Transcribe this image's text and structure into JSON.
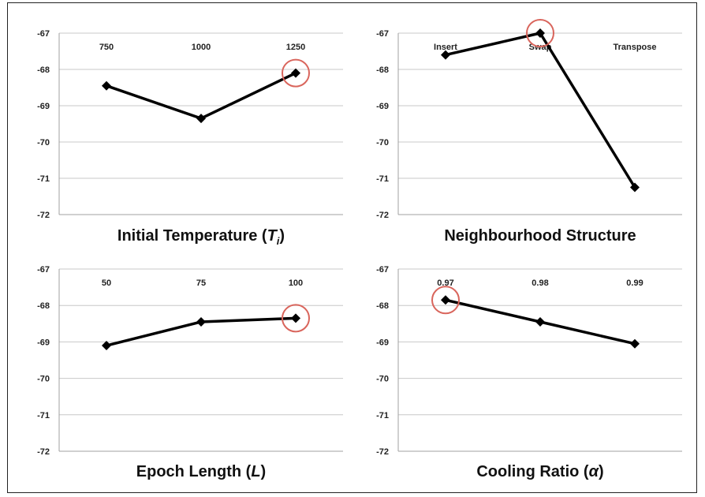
{
  "chart_data": [
    {
      "type": "line",
      "title": "Initial Temperature (",
      "title_var": "T",
      "title_sub": "i",
      "title_end": ")",
      "categories": [
        "750",
        "1000",
        "1250"
      ],
      "values": [
        -68.45,
        -69.35,
        -68.1
      ],
      "ylim": [
        -72,
        -67
      ],
      "yticks": [
        "-67",
        "-68",
        "-69",
        "-70",
        "-71",
        "-72"
      ],
      "highlight_index": 2,
      "grid": true,
      "legend": "none"
    },
    {
      "type": "line",
      "title": "Neighbourhood Structure",
      "title_var": "",
      "title_sub": "",
      "title_end": "",
      "categories": [
        "Insert",
        "Swap",
        "Transpose"
      ],
      "values": [
        -67.6,
        -67.0,
        -71.25
      ],
      "ylim": [
        -72,
        -67
      ],
      "yticks": [
        "-67",
        "-68",
        "-69",
        "-70",
        "-71",
        "-72"
      ],
      "highlight_index": 1,
      "grid": true,
      "legend": "none"
    },
    {
      "type": "line",
      "title": "Epoch Length (",
      "title_var": "L",
      "title_sub": "",
      "title_end": ")",
      "categories": [
        "50",
        "75",
        "100"
      ],
      "values": [
        -69.1,
        -68.45,
        -68.35
      ],
      "ylim": [
        -72,
        -67
      ],
      "yticks": [
        "-67",
        "-68",
        "-69",
        "-70",
        "-71",
        "-72"
      ],
      "highlight_index": 2,
      "grid": true,
      "legend": "none"
    },
    {
      "type": "line",
      "title": "Cooling Ratio (",
      "title_var": "α",
      "title_sub": "",
      "title_end": ")",
      "categories": [
        "0.97",
        "0.98",
        "0.99"
      ],
      "values": [
        -67.85,
        -68.45,
        -69.05
      ],
      "ylim": [
        -72,
        -67
      ],
      "yticks": [
        "-67",
        "-68",
        "-69",
        "-70",
        "-71",
        "-72"
      ],
      "highlight_index": 0,
      "grid": true,
      "legend": "none"
    }
  ],
  "colors": {
    "line": "#000000",
    "marker": "#000000",
    "highlight": "#d9655c",
    "grid": "#c8c8c8"
  }
}
